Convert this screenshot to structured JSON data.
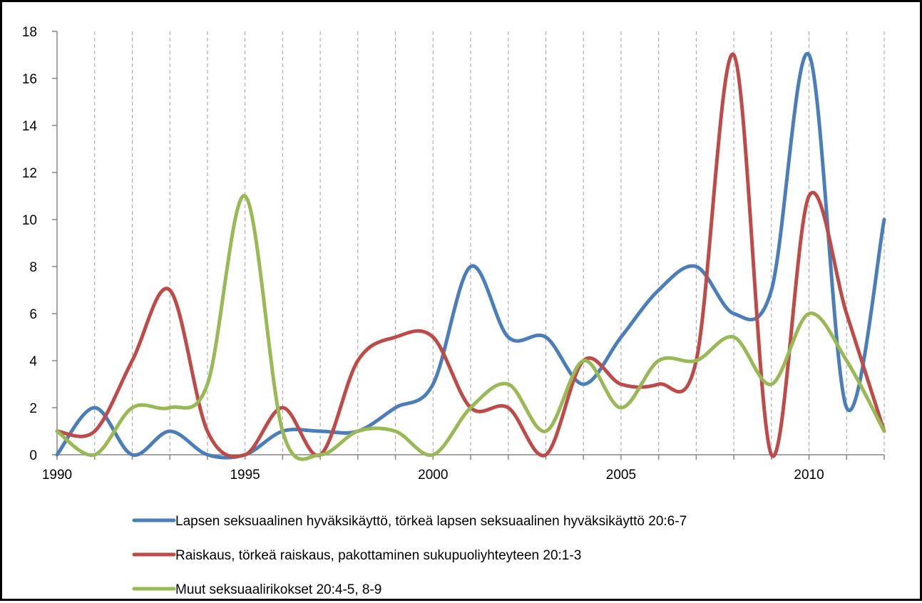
{
  "chart_data": {
    "type": "line",
    "smooth": true,
    "x": [
      1990,
      1991,
      1992,
      1993,
      1994,
      1995,
      1996,
      1997,
      1998,
      1999,
      2000,
      2001,
      2002,
      2003,
      2004,
      2005,
      2006,
      2007,
      2008,
      2009,
      2010,
      2011,
      2012
    ],
    "xlim": [
      1990,
      2012
    ],
    "ylim": [
      0,
      18
    ],
    "x_ticks": [
      1990,
      1995,
      2000,
      2005,
      2010
    ],
    "y_ticks": [
      0,
      2,
      4,
      6,
      8,
      10,
      12,
      14,
      16,
      18
    ],
    "x_tick_labels": [
      "1990",
      "1995",
      "2000",
      "2005",
      "2010"
    ],
    "y_tick_labels": [
      "0",
      "2",
      "4",
      "6",
      "8",
      "10",
      "12",
      "14",
      "16",
      "18"
    ],
    "grid": {
      "vertical": "dashed",
      "horizontal": "none"
    },
    "legend_position": "bottom",
    "series": [
      {
        "name": "Lapsen seksuaalinen hyväksikäyttö, törkeä lapsen seksuaalinen hyväksikäyttö 20:6-7",
        "color": "#4a7ebb",
        "values": [
          0,
          2,
          0,
          1,
          0,
          0,
          1,
          1,
          1,
          2,
          3,
          8,
          5,
          5,
          3,
          5,
          7,
          8,
          6,
          7,
          17,
          2,
          10
        ]
      },
      {
        "name": "Raiskaus, törkeä raiskaus, pakottaminen sukupuoliyhteyteen 20:1-3",
        "color": "#be4b48",
        "values": [
          1,
          1,
          4,
          7,
          1,
          0,
          2,
          0,
          4,
          5,
          5,
          2,
          2,
          0,
          4,
          3,
          3,
          4,
          17,
          0,
          11,
          6,
          1
        ]
      },
      {
        "name": "Muut seksuaalirikokset 20:4-5, 8-9",
        "color": "#98b954",
        "values": [
          1,
          0,
          2,
          2,
          3,
          11,
          1,
          0,
          1,
          1,
          0,
          2,
          3,
          1,
          4,
          2,
          4,
          4,
          5,
          3,
          6,
          4,
          1
        ]
      }
    ]
  }
}
